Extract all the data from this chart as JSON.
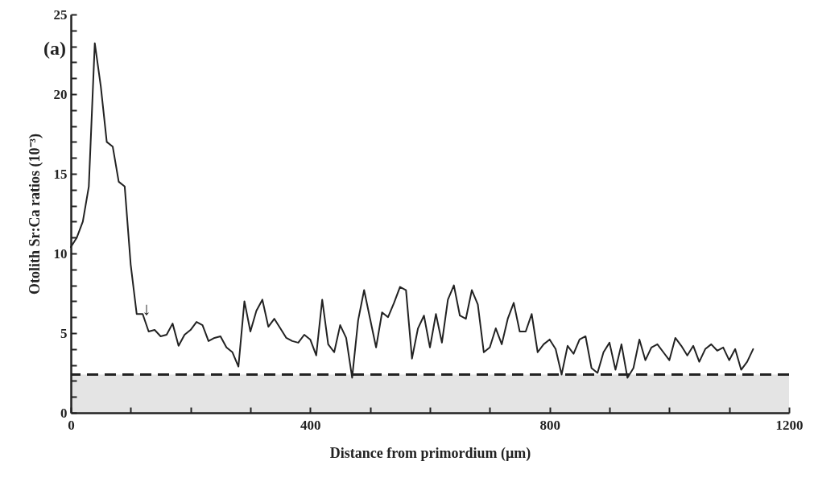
{
  "chart_data": {
    "type": "line",
    "title": "(a)",
    "xlabel": "Distance from primordium (µm)",
    "ylabel": "Otolith Sr:Ca ratios (10⁻³)",
    "x": [
      0,
      10,
      20,
      30,
      40,
      50,
      60,
      70,
      80,
      90,
      100,
      110,
      120,
      130,
      140,
      150,
      160,
      170,
      180,
      190,
      200,
      210,
      220,
      230,
      240,
      250,
      260,
      270,
      280,
      290,
      300,
      310,
      320,
      330,
      340,
      350,
      360,
      370,
      380,
      390,
      400,
      410,
      420,
      430,
      440,
      450,
      460,
      470,
      480,
      490,
      500,
      510,
      520,
      530,
      540,
      550,
      560,
      570,
      580,
      590,
      600,
      610,
      620,
      630,
      640,
      650,
      660,
      670,
      680,
      690,
      700,
      710,
      720,
      730,
      740,
      750,
      760,
      770,
      780,
      790,
      800,
      810,
      820,
      830,
      840,
      850,
      860,
      870,
      880,
      890,
      900,
      910,
      920,
      930,
      940,
      950,
      960,
      970,
      980,
      990,
      1000,
      1010,
      1020,
      1030,
      1040,
      1050,
      1060,
      1070,
      1080,
      1090,
      1100,
      1110,
      1120,
      1130,
      1140
    ],
    "series": [
      {
        "color": "#222222",
        "values": [
          10.4,
          11.0,
          12.0,
          14.2,
          23.2,
          20.5,
          17.0,
          16.7,
          14.5,
          14.2,
          9.3,
          6.2,
          6.2,
          5.1,
          5.2,
          4.8,
          4.9,
          5.6,
          4.2,
          4.9,
          5.2,
          5.7,
          5.5,
          4.5,
          4.7,
          4.8,
          4.1,
          3.8,
          2.9,
          7.0,
          5.1,
          6.4,
          7.1,
          5.4,
          5.9,
          5.3,
          4.7,
          4.5,
          4.4,
          4.9,
          4.6,
          3.6,
          7.1,
          4.3,
          3.8,
          5.5,
          4.7,
          2.2,
          5.8,
          7.7,
          5.9,
          4.1,
          6.3,
          6.0,
          6.9,
          7.9,
          7.7,
          3.4,
          5.3,
          6.1,
          4.1,
          6.2,
          4.4,
          7.1,
          8.0,
          6.1,
          5.9,
          7.7,
          6.8,
          3.8,
          4.1,
          5.3,
          4.3,
          5.9,
          6.9,
          5.1,
          5.1,
          6.2,
          3.8,
          4.3,
          4.6,
          4.0,
          2.4,
          4.2,
          3.7,
          4.6,
          4.8,
          2.8,
          2.5,
          3.8,
          4.4,
          2.7,
          4.3,
          2.2,
          2.8,
          4.6,
          3.3,
          4.1,
          4.3,
          3.8,
          3.3,
          4.7,
          4.2,
          3.6,
          4.2,
          3.2,
          4.0,
          4.3,
          3.9,
          4.1,
          3.3,
          4.0,
          2.7,
          3.2,
          4.0
        ]
      }
    ],
    "xlim": [
      0,
      1200
    ],
    "ylim": [
      0,
      25
    ],
    "xticks": [
      0,
      {
        "value": 100,
        "label": null
      },
      {
        "value": 200,
        "label": null
      },
      {
        "value": 300,
        "label": null
      },
      400,
      {
        "value": 500,
        "label": null
      },
      {
        "value": 600,
        "label": null
      },
      {
        "value": 700,
        "label": null
      },
      800,
      {
        "value": 900,
        "label": null
      },
      {
        "value": 1000,
        "label": null
      },
      {
        "value": 1100,
        "label": null
      },
      1200
    ],
    "yticks": [
      0,
      {
        "value": 1,
        "label": null
      },
      {
        "value": 2,
        "label": null
      },
      {
        "value": 3,
        "label": null
      },
      {
        "value": 4,
        "label": null
      },
      5,
      {
        "value": 6,
        "label": null
      },
      {
        "value": 7,
        "label": null
      },
      {
        "value": 8,
        "label": null
      },
      {
        "value": 9,
        "label": null
      },
      10,
      {
        "value": 11,
        "label": null
      },
      {
        "value": 12,
        "label": null
      },
      {
        "value": 13,
        "label": null
      },
      {
        "value": 14,
        "label": null
      },
      15,
      {
        "value": 16,
        "label": null
      },
      {
        "value": 17,
        "label": null
      },
      {
        "value": 18,
        "label": null
      },
      {
        "value": 19,
        "label": null
      },
      20,
      {
        "value": 21,
        "label": null
      },
      {
        "value": 22,
        "label": null
      },
      {
        "value": 23,
        "label": null
      },
      {
        "value": 24,
        "label": null
      },
      25
    ],
    "ref_lines": [
      {
        "axis": "y",
        "value": 2.4,
        "color": "#222222",
        "line_style": "dashed"
      }
    ],
    "bands": [
      {
        "axis": "y",
        "from": 0,
        "to": 2.4,
        "color": "#e4e4e4"
      }
    ],
    "annotations": [
      "↓"
    ],
    "grid": false,
    "marker": "none",
    "line_style": "solid"
  }
}
